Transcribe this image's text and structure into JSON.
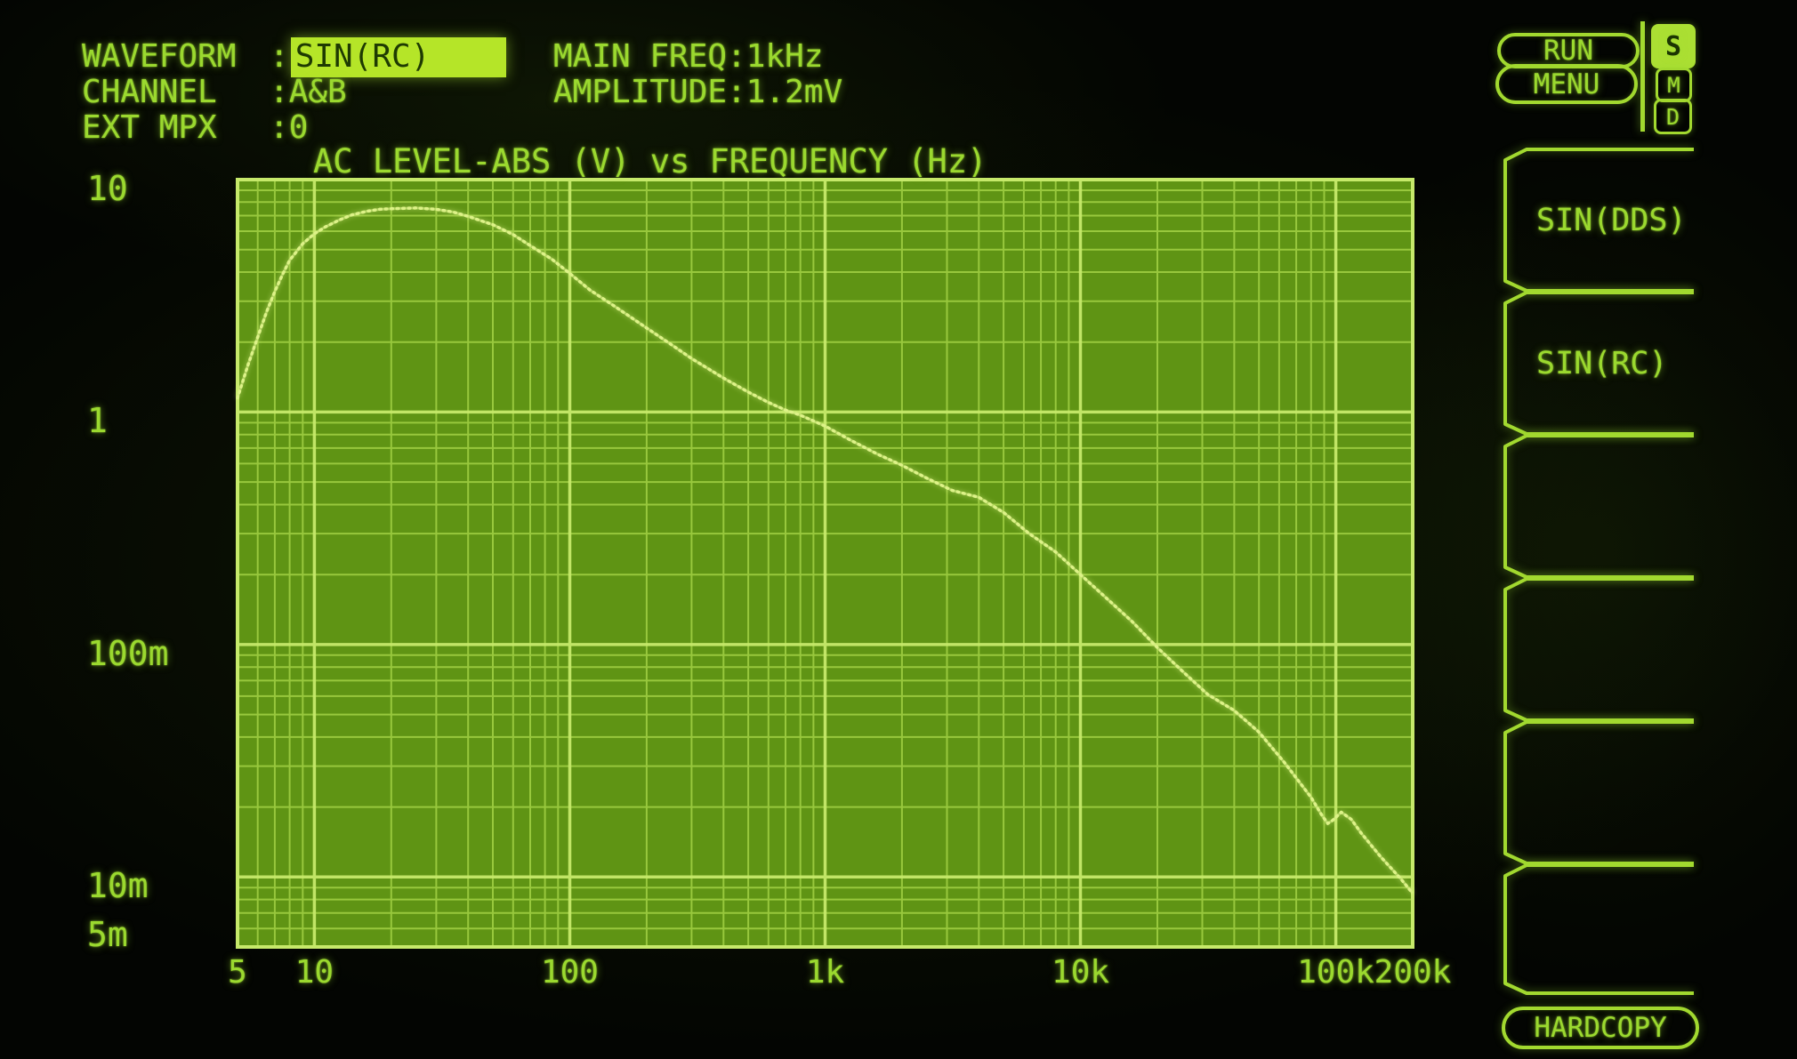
{
  "header": {
    "left_rows": [
      {
        "label": "WAVEFORM",
        "colon": ":",
        "value": "SIN(RC)",
        "highlighted": true
      },
      {
        "label": "CHANNEL",
        "colon": ":",
        "value": "A&B",
        "highlighted": false
      },
      {
        "label": "EXT MPX",
        "colon": ":",
        "value": "0",
        "highlighted": false
      }
    ],
    "right_rows": [
      {
        "label": "MAIN FREQ",
        "colon": ":",
        "value": "1kHz"
      },
      {
        "label": "AMPLITUDE",
        "colon": ":",
        "value": "1.2mV"
      }
    ]
  },
  "buttons": {
    "run": "RUN",
    "menu": "MENU",
    "hardcopy": "HARDCOPY"
  },
  "status_badges": [
    {
      "letter": "S",
      "active": true
    },
    {
      "letter": "M",
      "active": false
    },
    {
      "letter": "D",
      "active": false
    }
  ],
  "softkeys": {
    "items": [
      {
        "label": "SIN(DDS)"
      },
      {
        "label": "SIN(RC)"
      },
      {
        "label": ""
      },
      {
        "label": ""
      },
      {
        "label": ""
      },
      {
        "label": ""
      }
    ]
  },
  "colors": {
    "phosphor_text": "#9bd92f",
    "highlight_bg": "#b5e528",
    "highlight_text": "#1e3a02",
    "plot_bg": "#5f9414",
    "grid_minor": "#a6d447",
    "grid_major": "#c6e96a",
    "curve": "#ddf288",
    "outline": "#a2d92f",
    "badge_active_bg": "#abdf33",
    "screen_bg": "#030502"
  },
  "chart_data": {
    "type": "line",
    "title": "AC LEVEL-ABS (V) vs FREQUENCY (Hz)",
    "grid": "log-log, minor and major decade lines, grid on",
    "legend": "none",
    "x_axis": {
      "label": "FREQUENCY (Hz)",
      "scale": "log",
      "min": 5,
      "max": 200000,
      "ticks": [
        {
          "label": "5",
          "value": 5
        },
        {
          "label": "10",
          "value": 10
        },
        {
          "label": "100",
          "value": 100
        },
        {
          "label": "1k",
          "value": 1000
        },
        {
          "label": "10k",
          "value": 10000
        },
        {
          "label": "100k",
          "value": 100000
        },
        {
          "label": "200k",
          "value": 200000
        }
      ]
    },
    "y_axis": {
      "label": "AC LEVEL-ABS (V)",
      "scale": "log",
      "min": 0.005,
      "max": 10,
      "ticks": [
        {
          "label": "10",
          "value": 10
        },
        {
          "label": "1",
          "value": 1
        },
        {
          "label": "100m",
          "value": 0.1
        },
        {
          "label": "10m",
          "value": 0.01
        },
        {
          "label": "5m",
          "value": 0.005
        }
      ]
    },
    "series": [
      {
        "name": "AC LEVEL-ABS (V)",
        "points": [
          [
            5,
            1.15
          ],
          [
            5.5,
            1.6
          ],
          [
            6,
            2.1
          ],
          [
            6.5,
            2.7
          ],
          [
            7,
            3.3
          ],
          [
            7.5,
            3.9
          ],
          [
            8,
            4.5
          ],
          [
            9,
            5.3
          ],
          [
            10,
            5.85
          ],
          [
            11,
            6.25
          ],
          [
            12.5,
            6.7
          ],
          [
            14,
            7.05
          ],
          [
            16,
            7.3
          ],
          [
            18,
            7.45
          ],
          [
            20,
            7.5
          ],
          [
            25,
            7.55
          ],
          [
            30,
            7.45
          ],
          [
            35,
            7.25
          ],
          [
            40,
            6.95
          ],
          [
            50,
            6.4
          ],
          [
            60,
            5.8
          ],
          [
            70,
            5.2
          ],
          [
            85,
            4.55
          ],
          [
            100,
            3.95
          ],
          [
            120,
            3.35
          ],
          [
            150,
            2.85
          ],
          [
            200,
            2.3
          ],
          [
            250,
            1.95
          ],
          [
            300,
            1.7
          ],
          [
            400,
            1.4
          ],
          [
            500,
            1.22
          ],
          [
            600,
            1.1
          ],
          [
            700,
            1.02
          ],
          [
            800,
            0.97
          ],
          [
            1000,
            0.87
          ],
          [
            1250,
            0.76
          ],
          [
            1600,
            0.66
          ],
          [
            2000,
            0.59
          ],
          [
            2500,
            0.52
          ],
          [
            3150,
            0.46
          ],
          [
            4000,
            0.43
          ],
          [
            5000,
            0.37
          ],
          [
            6300,
            0.3
          ],
          [
            8000,
            0.25
          ],
          [
            10000,
            0.2
          ],
          [
            12500,
            0.16
          ],
          [
            16000,
            0.125
          ],
          [
            20000,
            0.097
          ],
          [
            25000,
            0.077
          ],
          [
            31500,
            0.061
          ],
          [
            40000,
            0.052
          ],
          [
            50000,
            0.042
          ],
          [
            63000,
            0.031
          ],
          [
            80000,
            0.022
          ],
          [
            88000,
            0.0185
          ],
          [
            93000,
            0.017
          ],
          [
            97000,
            0.0175
          ],
          [
            105000,
            0.019
          ],
          [
            115000,
            0.0177
          ],
          [
            126000,
            0.0154
          ],
          [
            150000,
            0.0122
          ],
          [
            180000,
            0.0098
          ],
          [
            200000,
            0.0085
          ]
        ]
      }
    ]
  }
}
